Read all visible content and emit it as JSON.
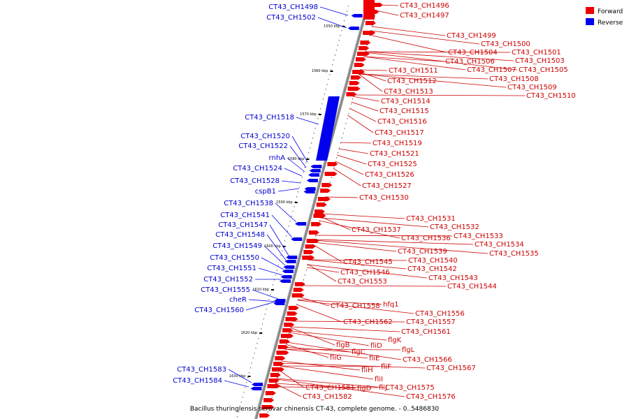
{
  "caption": "Bacillus thuringiensis serovar chinensis CT-43, complete genome. - 0..5486830",
  "legend": [
    {
      "label": "Forward",
      "color": "#ee0000"
    },
    {
      "label": "Reverse",
      "color": "#0000ee"
    }
  ],
  "colors": {
    "forward": "#ee0000",
    "reverse": "#0000ee",
    "backbone": "#888888",
    "forward_text": "#cc0000",
    "reverse_text": "#0000cc"
  },
  "ticks": [
    "1550 kbp",
    "1560 kbp",
    "1570 kbp",
    "1580 kbp",
    "1590 kbp",
    "1600 kbp",
    "1610 kbp",
    "1620 kbp",
    "1630 kbp"
  ],
  "reverse_labels": [
    "CT43_CH1498",
    "CT43_CH1502",
    "CT43_CH1518",
    "CT43_CH1520",
    "CT43_CH1522",
    "rnhA",
    "CT43_CH1524",
    "CT43_CH1528",
    "cspB1",
    "CT43_CH1538",
    "CT43_CH1541",
    "CT43_CH1547",
    "CT43_CH1548",
    "CT43_CH1549",
    "CT43_CH1550",
    "CT43_CH1551",
    "CT43_CH1552",
    "CT43_CH1555",
    "cheR",
    "CT43_CH1560",
    "CT43_CH1583",
    "CT43_CH1584"
  ],
  "forward_labels": [
    "CT43_CH1496",
    "CT43_CH1497",
    "CT43_CH1499",
    "CT43_CH1500",
    "CT43_CH1504",
    "CT43_CH1501",
    "CT43_CH1506",
    "CT43_CH1503",
    "CT43_CH1507",
    "CT43_CH1505",
    "CT43_CH1511",
    "CT43_CH1508",
    "CT43_CH1512",
    "CT43_CH1509",
    "CT43_CH1513",
    "CT43_CH1510",
    "CT43_CH1514",
    "CT43_CH1515",
    "CT43_CH1516",
    "CT43_CH1517",
    "CT43_CH1519",
    "CT43_CH1521",
    "CT43_CH1525",
    "CT43_CH1526",
    "CT43_CH1527",
    "CT43_CH1530",
    "CT43_CH1531",
    "CT43_CH1532",
    "CT43_CH1537",
    "CT43_CH1536",
    "CT43_CH1533",
    "CT43_CH1534",
    "CT43_CH1539",
    "CT43_CH1535",
    "CT43_CH1545",
    "CT43_CH1540",
    "CT43_CH1546",
    "CT43_CH1542",
    "CT43_CH1543",
    "CT43_CH1553",
    "CT43_CH1544",
    "hfq1",
    "CT43_CH1558",
    "CT43_CH1556",
    "CT43_CH1562",
    "CT43_CH1557",
    "CT43_CH1561",
    "flgK",
    "fliD",
    "flgB",
    "flgL",
    "flgC",
    "fliE",
    "fliG",
    "CT43_CH1566",
    "fliF",
    "CT43_CH1567",
    "fliH",
    "fliI",
    "CT43_CH1581",
    "fliJ",
    "flgD",
    "CT43_CH1575",
    "CT43_CH1582",
    "CT43_CH1576"
  ]
}
